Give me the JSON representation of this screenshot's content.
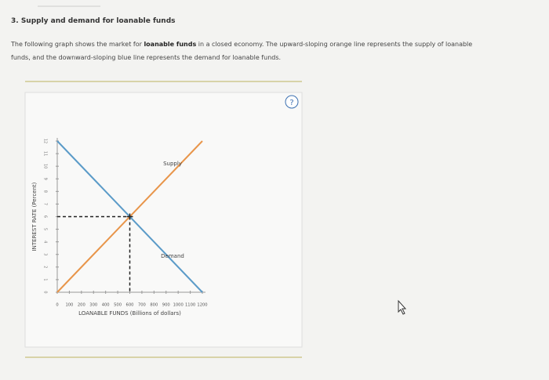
{
  "header": {
    "title": "3. Supply and demand for loanable funds"
  },
  "body": {
    "paragraph": {
      "before": "The following graph shows the market for ",
      "bold": "loanable funds",
      "after": " in a closed economy. The upward-sloping orange line represents the supply of loanable funds, and the downward-sloping blue line represents the demand for loanable funds."
    }
  },
  "help_label": "?",
  "chart_data": {
    "type": "line",
    "x_label": "LOANABLE FUNDS (Billions of dollars)",
    "y_label": "INTEREST RATE (Percent)",
    "series": [
      {
        "name": "Supply",
        "color": "#e8954a",
        "x": [
          0,
          1200
        ],
        "values": [
          0,
          12
        ]
      },
      {
        "name": "Demand",
        "color": "#5b9bc8",
        "x": [
          0,
          1200
        ],
        "values": [
          12,
          0
        ]
      }
    ],
    "equilibrium": {
      "x": 600,
      "y": 6
    },
    "xlim": [
      0,
      1200
    ],
    "xticks": [
      0,
      100,
      200,
      300,
      400,
      500,
      600,
      700,
      800,
      900,
      1000,
      1100,
      1200
    ],
    "ylim": [
      0,
      12
    ],
    "yticks": [
      0,
      1,
      2,
      3,
      4,
      5,
      6,
      7,
      8,
      9,
      10,
      11,
      12
    ]
  }
}
